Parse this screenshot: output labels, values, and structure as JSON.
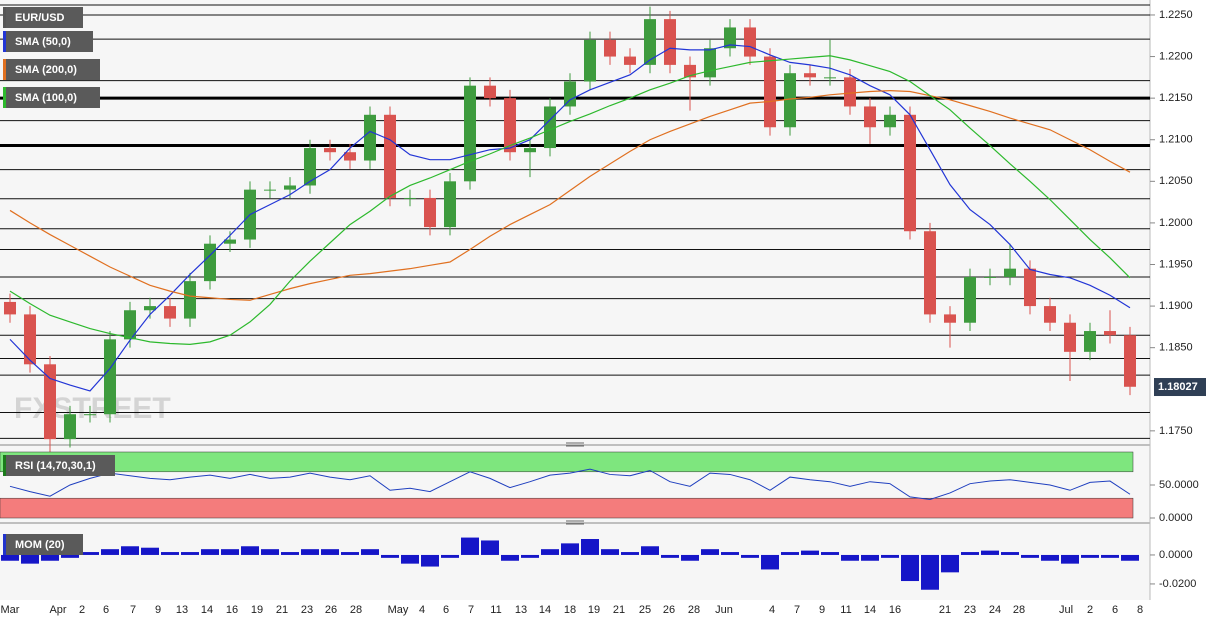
{
  "chart_data": [
    {
      "type": "candlestick",
      "symbol": "EUR/USD",
      "watermark": "FXSTREET",
      "open": [
        1.1905,
        1.189,
        1.183,
        1.174,
        1.177,
        1.177,
        1.186,
        1.1895,
        1.19,
        1.1885,
        1.193,
        1.1975,
        1.198,
        1.204,
        1.204,
        1.2045,
        1.209,
        1.2085,
        1.2075,
        1.213,
        1.203,
        1.203,
        1.1995,
        1.205,
        1.2165,
        1.215,
        1.2085,
        1.209,
        1.214,
        1.217,
        1.222,
        1.22,
        1.219,
        1.2245,
        1.219,
        1.2175,
        1.221,
        1.2235,
        1.22,
        1.2115,
        1.218,
        1.2175,
        1.2175,
        1.214,
        1.2115,
        1.213,
        1.199,
        1.189,
        1.188,
        1.1935,
        1.1935,
        1.1945,
        1.19,
        1.188,
        1.1845,
        1.187,
        1.1865
      ],
      "high": [
        1.1915,
        1.19,
        1.184,
        1.178,
        1.178,
        1.187,
        1.1905,
        1.191,
        1.191,
        1.194,
        1.1985,
        1.199,
        1.205,
        1.205,
        1.2055,
        1.21,
        1.21,
        1.2095,
        1.214,
        1.214,
        1.204,
        1.204,
        1.206,
        1.2175,
        1.2175,
        1.216,
        1.21,
        1.215,
        1.218,
        1.223,
        1.223,
        1.221,
        1.226,
        1.2255,
        1.22,
        1.222,
        1.2245,
        1.2245,
        1.221,
        1.219,
        1.219,
        1.222,
        1.2185,
        1.215,
        1.214,
        1.214,
        1.2,
        1.19,
        1.1945,
        1.1945,
        1.1975,
        1.1955,
        1.191,
        1.189,
        1.188,
        1.1895,
        1.1875
      ],
      "low": [
        1.188,
        1.182,
        1.1715,
        1.173,
        1.176,
        1.176,
        1.185,
        1.1885,
        1.1875,
        1.1875,
        1.192,
        1.1965,
        1.197,
        1.203,
        1.203,
        1.2035,
        1.2075,
        1.2065,
        1.2065,
        1.202,
        1.202,
        1.1985,
        1.1985,
        1.204,
        1.214,
        1.2075,
        1.2055,
        1.208,
        1.213,
        1.216,
        1.219,
        1.218,
        1.218,
        1.218,
        1.2135,
        1.2165,
        1.22,
        1.219,
        1.2105,
        1.2105,
        1.2165,
        1.2165,
        1.213,
        1.2095,
        1.2105,
        1.198,
        1.188,
        1.185,
        1.187,
        1.1925,
        1.1925,
        1.189,
        1.187,
        1.181,
        1.1835,
        1.1855,
        1.1793
      ],
      "close": [
        1.189,
        1.183,
        1.174,
        1.177,
        1.177,
        1.186,
        1.1895,
        1.19,
        1.1885,
        1.193,
        1.1975,
        1.198,
        1.204,
        1.204,
        1.2045,
        1.209,
        1.2085,
        1.2075,
        1.213,
        1.203,
        1.203,
        1.1995,
        1.205,
        1.2165,
        1.215,
        1.2085,
        1.209,
        1.214,
        1.217,
        1.222,
        1.22,
        1.219,
        1.2245,
        1.219,
        1.2175,
        1.221,
        1.2235,
        1.22,
        1.2115,
        1.218,
        1.2175,
        1.2175,
        1.214,
        1.2115,
        1.213,
        1.199,
        1.189,
        1.188,
        1.1935,
        1.1935,
        1.1945,
        1.19,
        1.188,
        1.1845,
        1.187,
        1.1865,
        1.1803
      ],
      "up_color": "#3e9b3e",
      "down_color": "#d9534f",
      "series": [
        {
          "name": "SMA (50,0)",
          "color": "#2235d6",
          "values": [
            1.186,
            1.1835,
            1.1813,
            1.1805,
            1.1798,
            1.1825,
            1.1859,
            1.189,
            1.1913,
            1.1938,
            1.1961,
            1.1985,
            1.201,
            1.2022,
            1.2034,
            1.205,
            1.2064,
            1.209,
            1.211,
            1.21,
            1.2082,
            1.2076,
            1.2076,
            1.2082,
            1.2088,
            1.209,
            1.21,
            1.2124,
            1.2148,
            1.216,
            1.2169,
            1.2178,
            1.2196,
            1.221,
            1.2208,
            1.2208,
            1.2214,
            1.2212,
            1.2202,
            1.2193,
            1.219,
            1.2186,
            1.2178,
            1.2165,
            1.2154,
            1.213,
            1.2088,
            1.2046,
            1.2016,
            1.1998,
            1.1974,
            1.1944,
            1.1938,
            1.1934,
            1.1925,
            1.1913,
            1.1898
          ]
        },
        {
          "name": "SMA (200,0)",
          "color": "#e07020",
          "values": [
            1.2015,
            1.2,
            1.1986,
            1.1973,
            1.196,
            1.1947,
            1.1936,
            1.1925,
            1.1918,
            1.1912,
            1.191,
            1.1908,
            1.1907,
            1.1914,
            1.1921,
            1.1927,
            1.1932,
            1.1937,
            1.1939,
            1.1942,
            1.1945,
            1.1949,
            1.1953,
            1.1968,
            1.1984,
            1.1998,
            1.201,
            1.2022,
            1.2039,
            1.2056,
            1.2071,
            1.2086,
            1.21,
            1.211,
            1.2119,
            1.2128,
            1.2136,
            1.2144,
            1.2146,
            1.2149,
            1.2151,
            1.2154,
            1.2156,
            1.2158,
            1.2159,
            1.2158,
            1.2153,
            1.2148,
            1.2141,
            1.2134,
            1.2126,
            1.2119,
            1.2112,
            1.21,
            1.2088,
            1.2074,
            1.2061
          ]
        },
        {
          "name": "SMA (100,0)",
          "color": "#2db92d",
          "values": [
            1.1918,
            1.1903,
            1.1889,
            1.1881,
            1.1873,
            1.1867,
            1.1862,
            1.1857,
            1.1855,
            1.1854,
            1.1857,
            1.1865,
            1.1881,
            1.1902,
            1.193,
            1.1954,
            1.1976,
            1.1998,
            1.2014,
            1.2032,
            1.2045,
            1.2054,
            1.2064,
            1.2074,
            1.2083,
            1.2093,
            1.2102,
            1.2112,
            1.2122,
            1.2131,
            1.2141,
            1.215,
            1.216,
            1.2168,
            1.2177,
            1.2183,
            1.2188,
            1.2193,
            1.2195,
            1.2197,
            1.2199,
            1.2201,
            1.2196,
            1.2189,
            1.2182,
            1.217,
            1.2153,
            1.2136,
            1.2114,
            1.2093,
            1.2071,
            1.205,
            1.2028,
            1.2004,
            1.198,
            1.1958,
            1.1934
          ]
        }
      ],
      "levels": [
        1.2262,
        1.225,
        1.2221,
        1.2171,
        1.2123,
        1.2064,
        1.2029,
        1.1993,
        1.1968,
        1.1935,
        1.1909,
        1.1865,
        1.1837,
        1.1817,
        1.1772,
        1.1741
      ],
      "strong_levels": [
        1.215,
        1.2093
      ],
      "last_price": 1.18027,
      "ylim": [
        1.1739,
        1.2268
      ],
      "yticks": [
        {
          "value": 1.225,
          "label": "1.2250"
        },
        {
          "value": 1.22,
          "label": "1.2200"
        },
        {
          "value": 1.215,
          "label": "1.2150"
        },
        {
          "value": 1.21,
          "label": "1.2100"
        },
        {
          "value": 1.205,
          "label": "1.2050"
        },
        {
          "value": 1.2,
          "label": "1.2000"
        },
        {
          "value": 1.195,
          "label": "1.1950"
        },
        {
          "value": 1.19,
          "label": "1.1900"
        },
        {
          "value": 1.185,
          "label": "1.1850"
        },
        {
          "value": 1.175,
          "label": "1.1750"
        }
      ],
      "x_axis_labels": [
        "Mar",
        "Apr",
        "2",
        "6",
        "7",
        "9",
        "13",
        "14",
        "16",
        "19",
        "21",
        "23",
        "26",
        "28",
        "May",
        "4",
        "6",
        "7",
        "11",
        "13",
        "14",
        "18",
        "19",
        "21",
        "25",
        "26",
        "28",
        "Jun",
        "4",
        "7",
        "9",
        "11",
        "14",
        "16",
        "21",
        "23",
        "24",
        "28",
        "Jul",
        "2",
        "6",
        "8"
      ]
    },
    {
      "type": "line",
      "name": "RSI (14,70,30,1)",
      "color": "#1f3fbf",
      "values": [
        48,
        40,
        33,
        50,
        60,
        68,
        64,
        60,
        58,
        62,
        65,
        60,
        66,
        60,
        62,
        68,
        62,
        58,
        64,
        42,
        45,
        40,
        55,
        70,
        60,
        46,
        55,
        65,
        68,
        74,
        66,
        64,
        72,
        55,
        48,
        68,
        66,
        58,
        42,
        62,
        58,
        55,
        48,
        55,
        52,
        32,
        28,
        38,
        52,
        56,
        58,
        54,
        50,
        42,
        54,
        56,
        36
      ],
      "upper_band": 70,
      "lower_band": 30,
      "upper_color": "#7ee67e",
      "lower_color": "#f47c7c",
      "ylim": [
        0,
        100
      ],
      "yticks": [
        {
          "value": 50,
          "label": "50.0000"
        },
        {
          "value": 0,
          "label": "0.0000"
        }
      ]
    },
    {
      "type": "bar",
      "name": "MOM (20)",
      "color": "#1616c8",
      "values": [
        -0.004,
        -0.006,
        -0.004,
        -0.002,
        0.002,
        0.004,
        0.006,
        0.005,
        0.002,
        0.002,
        0.004,
        0.004,
        0.006,
        0.004,
        0.002,
        0.004,
        0.004,
        0.002,
        0.004,
        -0.002,
        -0.006,
        -0.008,
        -0.002,
        0.012,
        0.01,
        -0.004,
        -0.002,
        0.004,
        0.008,
        0.011,
        0.004,
        0.002,
        0.006,
        -0.002,
        -0.004,
        0.004,
        0.002,
        -0.002,
        -0.01,
        0.002,
        0.003,
        0.002,
        -0.004,
        -0.004,
        -0.002,
        -0.018,
        -0.024,
        -0.012,
        0.002,
        0.003,
        0.002,
        -0.002,
        -0.004,
        -0.006,
        -0.002,
        -0.002,
        -0.004
      ],
      "ylim": [
        -0.0297,
        0.0186
      ],
      "yticks": [
        {
          "value": 0,
          "label": "0.0000"
        },
        {
          "value": -0.02,
          "label": "-0.0200"
        }
      ]
    }
  ]
}
